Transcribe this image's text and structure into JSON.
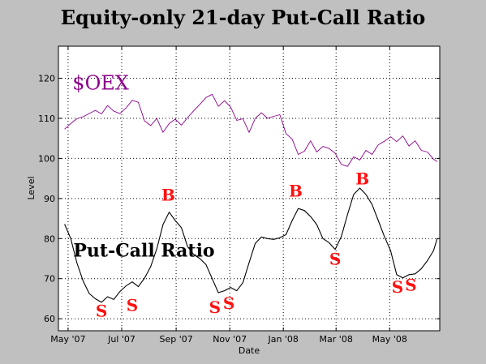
{
  "chart_data": {
    "type": "line",
    "title": "Equity-only 21-day Put-Call Ratio",
    "xlabel": "Date",
    "ylabel": "Level",
    "ylim": [
      57,
      128
    ],
    "xlim": [
      "2007-04-20",
      "2008-06-27"
    ],
    "grid": true,
    "x_ticks": [
      {
        "date": "2007-05-01",
        "label": "May '07"
      },
      {
        "date": "2007-07-01",
        "label": "Jul '07"
      },
      {
        "date": "2007-09-01",
        "label": "Sep '07"
      },
      {
        "date": "2007-11-01",
        "label": "Nov '07"
      },
      {
        "date": "2008-01-01",
        "label": "Jan '08"
      },
      {
        "date": "2008-03-01",
        "label": "Mar '08"
      },
      {
        "date": "2008-05-01",
        "label": "May '08"
      }
    ],
    "y_ticks": [
      60,
      70,
      80,
      90,
      100,
      110,
      120
    ],
    "series": [
      {
        "name": "$OEX",
        "color": "#8b008b",
        "points": [
          [
            "2007-04-27",
            107.3
          ],
          [
            "2007-05-04",
            108.7
          ],
          [
            "2007-05-11",
            109.9
          ],
          [
            "2007-05-18",
            110.4
          ],
          [
            "2007-05-25",
            111.2
          ],
          [
            "2007-06-01",
            112.0
          ],
          [
            "2007-06-08",
            111.1
          ],
          [
            "2007-06-15",
            113.2
          ],
          [
            "2007-06-22",
            111.8
          ],
          [
            "2007-06-29",
            111.2
          ],
          [
            "2007-07-06",
            112.6
          ],
          [
            "2007-07-13",
            114.5
          ],
          [
            "2007-07-20",
            114.0
          ],
          [
            "2007-07-27",
            109.4
          ],
          [
            "2007-08-03",
            108.2
          ],
          [
            "2007-08-10",
            110.0
          ],
          [
            "2007-08-17",
            106.5
          ],
          [
            "2007-08-24",
            108.7
          ],
          [
            "2007-08-31",
            109.8
          ],
          [
            "2007-09-07",
            108.3
          ],
          [
            "2007-09-14",
            110.2
          ],
          [
            "2007-09-21",
            111.9
          ],
          [
            "2007-09-28",
            113.5
          ],
          [
            "2007-10-05",
            115.2
          ],
          [
            "2007-10-12",
            116.0
          ],
          [
            "2007-10-19",
            113.0
          ],
          [
            "2007-10-26",
            114.4
          ],
          [
            "2007-11-02",
            112.8
          ],
          [
            "2007-11-09",
            109.5
          ],
          [
            "2007-11-16",
            109.9
          ],
          [
            "2007-11-23",
            106.5
          ],
          [
            "2007-11-30",
            110.0
          ],
          [
            "2007-12-07",
            111.4
          ],
          [
            "2007-12-14",
            110.0
          ],
          [
            "2007-12-21",
            110.5
          ],
          [
            "2007-12-28",
            110.9
          ],
          [
            "2008-01-04",
            106.2
          ],
          [
            "2008-01-11",
            104.8
          ],
          [
            "2008-01-18",
            101.0
          ],
          [
            "2008-01-25",
            101.8
          ],
          [
            "2008-02-01",
            104.4
          ],
          [
            "2008-02-08",
            101.6
          ],
          [
            "2008-02-15",
            103.0
          ],
          [
            "2008-02-22",
            102.5
          ],
          [
            "2008-02-29",
            101.3
          ],
          [
            "2008-03-07",
            98.5
          ],
          [
            "2008-03-14",
            98.0
          ],
          [
            "2008-03-21",
            100.4
          ],
          [
            "2008-03-28",
            99.6
          ],
          [
            "2008-04-04",
            102.0
          ],
          [
            "2008-04-11",
            101.0
          ],
          [
            "2008-04-18",
            103.4
          ],
          [
            "2008-04-25",
            104.3
          ],
          [
            "2008-05-02",
            105.4
          ],
          [
            "2008-05-09",
            104.2
          ],
          [
            "2008-05-16",
            105.6
          ],
          [
            "2008-05-23",
            103.1
          ],
          [
            "2008-05-30",
            104.4
          ],
          [
            "2008-06-06",
            102.0
          ],
          [
            "2008-06-13",
            101.6
          ],
          [
            "2008-06-20",
            99.8
          ],
          [
            "2008-06-24",
            99.2
          ]
        ]
      },
      {
        "name": "Put-Call Ratio",
        "color": "#000000",
        "points": [
          [
            "2007-04-27",
            83.6
          ],
          [
            "2007-05-04",
            80.0
          ],
          [
            "2007-05-11",
            74.0
          ],
          [
            "2007-05-18",
            69.5
          ],
          [
            "2007-05-25",
            66.3
          ],
          [
            "2007-06-01",
            65.0
          ],
          [
            "2007-06-08",
            64.1
          ],
          [
            "2007-06-15",
            65.5
          ],
          [
            "2007-06-22",
            64.8
          ],
          [
            "2007-06-29",
            66.8
          ],
          [
            "2007-07-06",
            68.2
          ],
          [
            "2007-07-13",
            69.2
          ],
          [
            "2007-07-20",
            68.0
          ],
          [
            "2007-07-27",
            70.1
          ],
          [
            "2007-08-03",
            73.0
          ],
          [
            "2007-08-10",
            77.5
          ],
          [
            "2007-08-17",
            83.5
          ],
          [
            "2007-08-24",
            86.6
          ],
          [
            "2007-08-31",
            84.5
          ],
          [
            "2007-09-07",
            82.7
          ],
          [
            "2007-09-14",
            78.0
          ],
          [
            "2007-09-21",
            76.0
          ],
          [
            "2007-09-28",
            75.0
          ],
          [
            "2007-10-05",
            73.5
          ],
          [
            "2007-10-12",
            70.0
          ],
          [
            "2007-10-19",
            66.5
          ],
          [
            "2007-10-26",
            67.0
          ],
          [
            "2007-11-02",
            67.8
          ],
          [
            "2007-11-09",
            67.0
          ],
          [
            "2007-11-16",
            69.0
          ],
          [
            "2007-11-23",
            74.0
          ],
          [
            "2007-11-30",
            78.8
          ],
          [
            "2007-12-07",
            80.4
          ],
          [
            "2007-12-14",
            80.0
          ],
          [
            "2007-12-21",
            79.8
          ],
          [
            "2007-12-28",
            80.2
          ],
          [
            "2008-01-04",
            81.0
          ],
          [
            "2008-01-11",
            84.5
          ],
          [
            "2008-01-18",
            87.5
          ],
          [
            "2008-01-25",
            87.0
          ],
          [
            "2008-02-01",
            85.5
          ],
          [
            "2008-02-08",
            83.5
          ],
          [
            "2008-02-15",
            80.0
          ],
          [
            "2008-02-22",
            79.0
          ],
          [
            "2008-02-29",
            77.3
          ],
          [
            "2008-03-07",
            80.5
          ],
          [
            "2008-03-14",
            86.0
          ],
          [
            "2008-03-21",
            91.0
          ],
          [
            "2008-03-28",
            92.6
          ],
          [
            "2008-04-04",
            91.0
          ],
          [
            "2008-04-11",
            88.5
          ],
          [
            "2008-04-18",
            84.5
          ],
          [
            "2008-04-25",
            80.5
          ],
          [
            "2008-05-02",
            77.0
          ],
          [
            "2008-05-09",
            71.0
          ],
          [
            "2008-05-16",
            70.2
          ],
          [
            "2008-05-23",
            71.0
          ],
          [
            "2008-05-30",
            71.2
          ],
          [
            "2008-06-06",
            72.5
          ],
          [
            "2008-06-13",
            74.5
          ],
          [
            "2008-06-20",
            77.0
          ],
          [
            "2008-06-24",
            80.0
          ]
        ]
      }
    ],
    "annotations": [
      {
        "text": "B",
        "date": "2007-08-23",
        "y": 89.5,
        "color": "#ff1010"
      },
      {
        "text": "B",
        "date": "2008-01-15",
        "y": 90.5,
        "color": "#ff1010"
      },
      {
        "text": "B",
        "date": "2008-03-31",
        "y": 93.5,
        "color": "#ff1010"
      },
      {
        "text": "S",
        "date": "2007-06-08",
        "y": 60.5,
        "color": "#ff1010"
      },
      {
        "text": "S",
        "date": "2007-07-13",
        "y": 62.0,
        "color": "#ff1010"
      },
      {
        "text": "S",
        "date": "2007-10-15",
        "y": 61.5,
        "color": "#ff1010"
      },
      {
        "text": "S",
        "date": "2007-10-31",
        "y": 62.5,
        "color": "#ff1010"
      },
      {
        "text": "S",
        "date": "2008-02-29",
        "y": 73.5,
        "color": "#ff1010"
      },
      {
        "text": "S",
        "date": "2008-05-10",
        "y": 66.5,
        "color": "#ff1010"
      },
      {
        "text": "S",
        "date": "2008-05-25",
        "y": 67.0,
        "color": "#ff1010"
      }
    ],
    "series_labels": [
      {
        "text": "$OEX",
        "date": "2007-05-06",
        "y": 117.2,
        "color": "#8b008b"
      },
      {
        "text": "Put-Call Ratio",
        "date": "2007-05-07",
        "y": 75.5,
        "color": "#000000"
      }
    ]
  }
}
